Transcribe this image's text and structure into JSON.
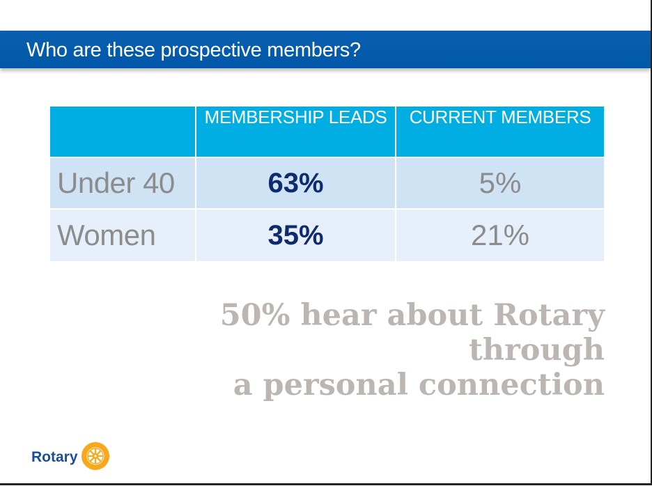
{
  "slide": {
    "title": "Who are these prospective members?"
  },
  "table": {
    "headers": [
      "",
      "MEMBERSHIP LEADS",
      "CURRENT MEMBERS"
    ],
    "rows": [
      {
        "label": "Under 40",
        "leads": "63%",
        "current": "5%"
      },
      {
        "label": "Women",
        "leads": "35%",
        "current": "21%"
      }
    ]
  },
  "quote": {
    "lines": [
      "50% hear about Rotary",
      "through",
      "a personal connection"
    ]
  },
  "logo": {
    "wordmark": "Rotary",
    "icon": "rotary-wheel-icon"
  },
  "colors": {
    "title_bar": "#0157a8",
    "header_cells": "#00aee4",
    "row_light": "#cfe3f4",
    "row_lighter": "#e7f0fa",
    "lead_values": "#0e2b6e",
    "quote_text": "#bcb6b3",
    "logo_blue": "#1a4da1",
    "logo_gold": "#f7a81b"
  }
}
